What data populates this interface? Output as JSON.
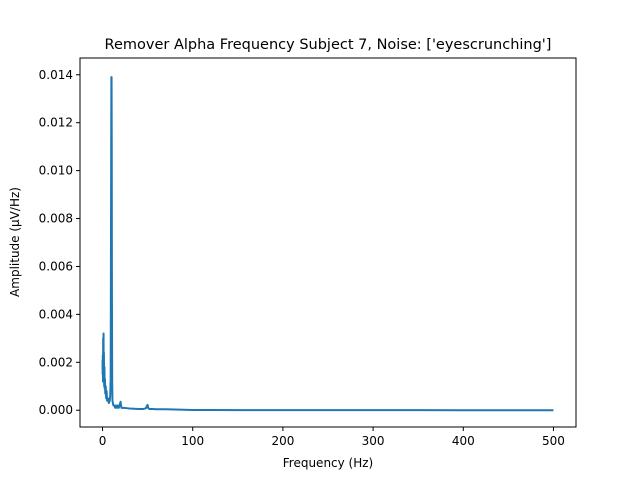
{
  "chart_data": {
    "type": "line",
    "title": "Remover Alpha Frequency Subject 7, Noise: ['eyescrunching']",
    "xlabel": "Frequency (Hz)",
    "ylabel": "Amplitude (μV/Hz)",
    "xlim": [
      -25,
      525
    ],
    "ylim": [
      -0.0007,
      0.0147
    ],
    "x_ticks": [
      0,
      100,
      200,
      300,
      400,
      500
    ],
    "x_tick_labels": [
      "0",
      "100",
      "200",
      "300",
      "400",
      "500"
    ],
    "y_ticks": [
      0.0,
      0.002,
      0.004,
      0.006,
      0.008,
      0.01,
      0.012,
      0.014
    ],
    "y_tick_labels": [
      "0.000",
      "0.002",
      "0.004",
      "0.006",
      "0.008",
      "0.010",
      "0.012",
      "0.014"
    ],
    "grid": false,
    "line_color": "#1f77b4",
    "series": [
      {
        "x": [
          0,
          0.1,
          0.3,
          0.5,
          0.7,
          0.9,
          1.1,
          1.3,
          1.5,
          1.8,
          2.1,
          2.4,
          2.7,
          3,
          3.5,
          4,
          4.5,
          5,
          6,
          7,
          8,
          8.5,
          9,
          9.3,
          9.6,
          9.8,
          10,
          10.2,
          10.4,
          10.7,
          11,
          11.5,
          12,
          13,
          14,
          15,
          16,
          17,
          18,
          19,
          19.5,
          20,
          20.5,
          21,
          22,
          24,
          26,
          28,
          30,
          35,
          40,
          45,
          48,
          49.5,
          50,
          50.5,
          52,
          55,
          60,
          70,
          80,
          90,
          100,
          120,
          150,
          200,
          250,
          300,
          350,
          400,
          450,
          500
        ],
        "y": [
          0.0021,
          0.0015,
          0.0023,
          0.0012,
          0.003,
          0.0018,
          0.0032,
          0.0014,
          0.0024,
          0.001,
          0.0018,
          0.0009,
          0.0013,
          0.0007,
          0.001,
          0.0005,
          0.0008,
          0.0004,
          0.0005,
          0.0003,
          0.0004,
          0.0006,
          0.0013,
          0.006,
          0.011,
          0.0139,
          0.0139,
          0.011,
          0.005,
          0.0012,
          0.0004,
          0.0003,
          0.0002,
          0.0002,
          0.0001,
          0.0002,
          0.0001,
          0.0002,
          0.0001,
          0.0002,
          0.0003,
          0.00035,
          0.0002,
          0.0001,
          0.0001,
          0.0001,
          9e-05,
          8e-05,
          7e-05,
          6e-05,
          5e-05,
          5e-05,
          8e-05,
          0.0002,
          0.00022,
          0.0001,
          5e-05,
          5e-05,
          4e-05,
          4e-05,
          3e-05,
          2e-05,
          1e-05,
          1e-05,
          5e-06,
          4e-06,
          3e-06,
          2e-06,
          2e-06,
          1e-06,
          1e-06,
          1e-06
        ]
      }
    ]
  }
}
